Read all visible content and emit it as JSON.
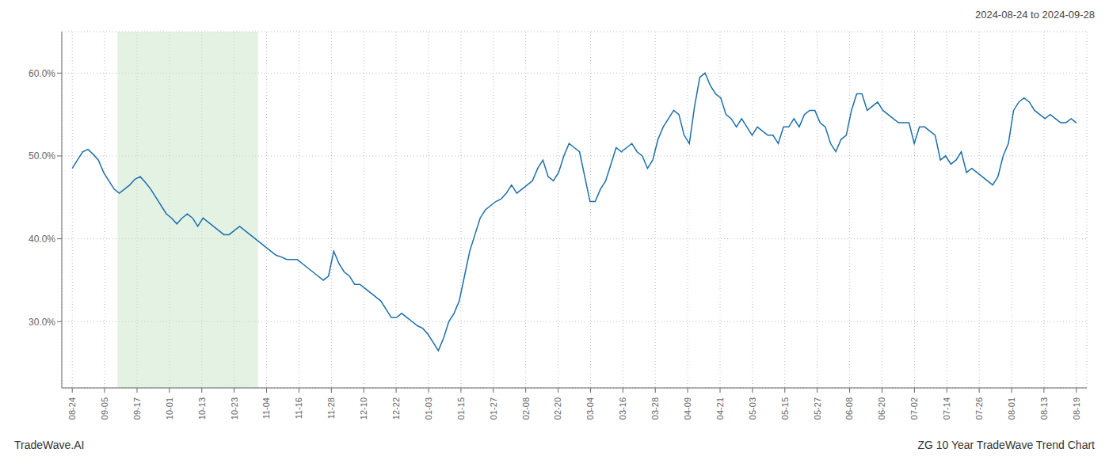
{
  "chart_data": {
    "type": "line",
    "title": "2024-08-24 to 2024-09-28",
    "annotations": [
      "TradeWave.AI",
      "ZG 10 Year TradeWave Trend Chart"
    ],
    "grid": true,
    "x": [
      0,
      1,
      2,
      3,
      4,
      5,
      6,
      7,
      8,
      9,
      10,
      11,
      12,
      13,
      14,
      15,
      16,
      17,
      18,
      19,
      20,
      21,
      22,
      23,
      24,
      25,
      26,
      27,
      28,
      29,
      30,
      31,
      32,
      33,
      34,
      35,
      36,
      37,
      38,
      39,
      40,
      41,
      42,
      43,
      44,
      45,
      46,
      47,
      48,
      49,
      50,
      51,
      52,
      53,
      54,
      55,
      56,
      57,
      58,
      59,
      60,
      61,
      62,
      63,
      64,
      65,
      66,
      67,
      68,
      69,
      70,
      71,
      72,
      73,
      74,
      75,
      76,
      77,
      78,
      79,
      80,
      81,
      82,
      83,
      84,
      85,
      86,
      87,
      88,
      89,
      90,
      91,
      92,
      93,
      94,
      95,
      96,
      97,
      98,
      99,
      100,
      101,
      102,
      103,
      104,
      105,
      106,
      107,
      108,
      109,
      110,
      111,
      112,
      113,
      114,
      115,
      116,
      117,
      118,
      119,
      120,
      121,
      122,
      123,
      124,
      125,
      126,
      127,
      128,
      129,
      130,
      131,
      132,
      133,
      134,
      135,
      136,
      137,
      138,
      139,
      140,
      141,
      142,
      143,
      144,
      145,
      146,
      147,
      148,
      149,
      150,
      151,
      152,
      153,
      154,
      155,
      156,
      157,
      158,
      159,
      160,
      161,
      162,
      163,
      164,
      165,
      166,
      167,
      168,
      169,
      170,
      171,
      172,
      173,
      174,
      175,
      176,
      177,
      178,
      179,
      180,
      181,
      182,
      183,
      184,
      185,
      186,
      187,
      188,
      189,
      190,
      191,
      192
    ],
    "series": [
      {
        "color": "#1a6fad",
        "values": [
          48.5,
          49.5,
          50.5,
          50.8,
          50.2,
          49.5,
          48.0,
          47.0,
          46.0,
          45.5,
          46.0,
          46.5,
          47.2,
          47.5,
          46.8,
          46.0,
          45.0,
          44.0,
          43.0,
          42.5,
          41.8,
          42.5,
          43.0,
          42.5,
          41.5,
          42.5,
          42.0,
          41.5,
          41.0,
          40.5,
          40.5,
          41.0,
          41.5,
          41.0,
          40.5,
          40.0,
          39.5,
          39.0,
          38.5,
          38.0,
          37.8,
          37.5,
          37.5,
          37.5,
          37.0,
          36.5,
          36.0,
          35.5,
          35.0,
          35.5,
          38.5,
          37.0,
          36.0,
          35.5,
          34.5,
          34.5,
          34.0,
          33.5,
          33.0,
          32.5,
          31.5,
          30.5,
          30.5,
          31.0,
          30.5,
          30.0,
          29.5,
          29.2,
          28.5,
          27.5,
          26.5,
          28.0,
          30.0,
          31.0,
          32.5,
          35.5,
          38.5,
          40.5,
          42.5,
          43.5,
          44.0,
          44.5,
          44.8,
          45.5,
          46.5,
          45.5,
          46.0,
          46.5,
          47.0,
          48.5,
          49.5,
          47.5,
          47.0,
          48.0,
          50.0,
          51.5,
          51.0,
          50.5,
          47.5,
          44.5,
          44.5,
          46.0,
          47.0,
          49.0,
          51.0,
          50.5,
          51.0,
          51.5,
          50.5,
          50.0,
          48.5,
          49.5,
          52.0,
          53.5,
          54.5,
          55.5,
          55.0,
          52.5,
          51.5,
          56.0,
          59.5,
          60.0,
          58.5,
          57.5,
          57.0,
          55.0,
          54.5,
          53.5,
          54.5,
          53.5,
          52.5,
          53.5,
          53.0,
          52.5,
          52.5,
          51.5,
          53.5,
          53.5,
          54.5,
          53.5,
          55.0,
          55.5,
          55.5,
          54.0,
          53.5,
          51.5,
          50.5,
          52.0,
          52.5,
          55.5,
          57.5,
          57.5,
          55.5,
          56.0,
          56.5,
          55.5,
          55.0,
          54.5,
          54.0,
          54.0,
          54.0,
          51.5,
          53.5,
          53.5,
          53.0,
          52.5,
          49.5,
          50.0,
          49.0,
          49.5,
          50.5,
          48.0,
          48.5,
          48.0,
          47.5,
          47.0,
          46.5,
          47.5,
          50.0,
          51.5,
          55.5,
          56.5,
          57.0,
          56.5,
          55.5,
          55.0,
          54.5,
          55.0,
          54.5,
          54.0,
          54.0,
          54.5,
          54.0
        ]
      }
    ],
    "xlim": [
      -2,
      194
    ],
    "xticks": [
      {
        "value": 0,
        "label": "08-24"
      },
      {
        "value": 6.1935484,
        "label": "09-05"
      },
      {
        "value": 12.3870968,
        "label": "09-17"
      },
      {
        "value": 18.5806452,
        "label": "10-01"
      },
      {
        "value": 24.7741935,
        "label": "10-13"
      },
      {
        "value": 30.9677419,
        "label": "10-23"
      },
      {
        "value": 37.1612903,
        "label": "11-04"
      },
      {
        "value": 43.3548387,
        "label": "11-16"
      },
      {
        "value": 49.5483871,
        "label": "11-28"
      },
      {
        "value": 55.7419355,
        "label": "12-10"
      },
      {
        "value": 61.9354839,
        "label": "12-22"
      },
      {
        "value": 68.1290323,
        "label": "01-03"
      },
      {
        "value": 74.3225806,
        "label": "01-15"
      },
      {
        "value": 80.516129,
        "label": "01-27"
      },
      {
        "value": 86.7096774,
        "label": "02-08"
      },
      {
        "value": 92.9032258,
        "label": "02-20"
      },
      {
        "value": 99.0967742,
        "label": "03-04"
      },
      {
        "value": 105.2903226,
        "label": "03-16"
      },
      {
        "value": 111.483871,
        "label": "03-28"
      },
      {
        "value": 117.6774194,
        "label": "04-09"
      },
      {
        "value": 123.8709677,
        "label": "04-21"
      },
      {
        "value": 130.0645161,
        "label": "05-03"
      },
      {
        "value": 136.2580645,
        "label": "05-15"
      },
      {
        "value": 142.4516129,
        "label": "05-27"
      },
      {
        "value": 148.6451613,
        "label": "06-08"
      },
      {
        "value": 154.8387097,
        "label": "06-20"
      },
      {
        "value": 161.0322581,
        "label": "07-02"
      },
      {
        "value": 167.2258065,
        "label": "07-14"
      },
      {
        "value": 173.4193548,
        "label": "07-26"
      },
      {
        "value": 179.6129032,
        "label": "08-01"
      },
      {
        "value": 185.8064516,
        "label": "08-13"
      },
      {
        "value": 192,
        "label": "08-19"
      }
    ],
    "ylim": [
      22,
      65
    ],
    "yticks": [
      {
        "value": 30.0,
        "label": "30.0%"
      },
      {
        "value": 40.0,
        "label": "40.0%"
      },
      {
        "value": 50.0,
        "label": "50.0%"
      },
      {
        "value": 60.0,
        "label": "60.0%"
      }
    ],
    "highlight": {
      "x": [
        8.64,
        35.52
      ],
      "color": "#cde8cd"
    }
  }
}
